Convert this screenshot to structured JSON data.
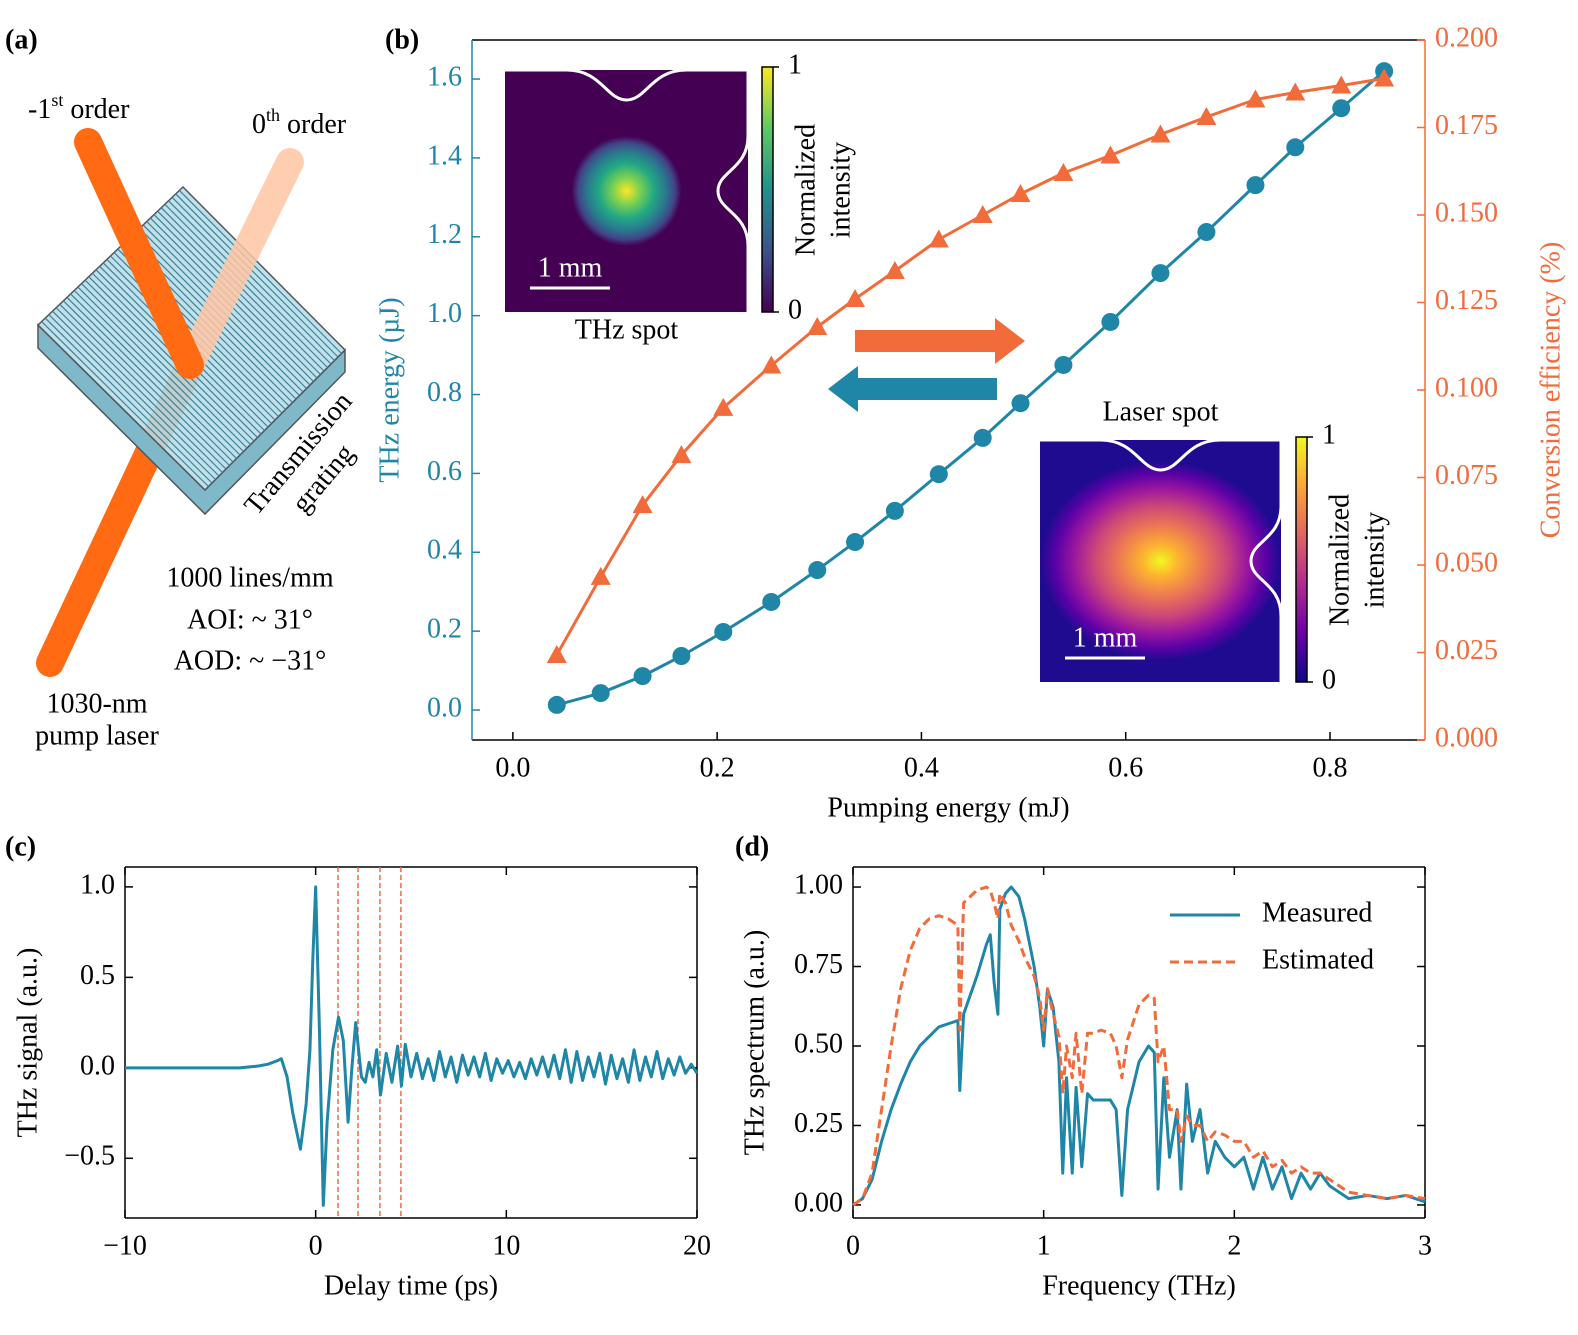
{
  "panel_a": {
    "label": "(a)",
    "minus_first": [
      "-1",
      "st",
      " order"
    ],
    "zeroth": [
      "0",
      "th",
      " order"
    ],
    "grating": [
      "Transmission",
      "grating"
    ],
    "specs": [
      "1000 lines/mm",
      "AOI: ~ 31°",
      "AOD: ~ −31°"
    ],
    "laser": [
      "1030-nm",
      "pump laser"
    ]
  },
  "chart_data": [
    {
      "type": "line",
      "label": "(b)",
      "xlabel": "Pumping energy (mJ)",
      "ylabel": "THz energy (µJ)",
      "y2label": "Conversion efficiency (%)",
      "x": [
        0.043,
        0.086,
        0.127,
        0.165,
        0.206,
        0.253,
        0.298,
        0.335,
        0.374,
        0.417,
        0.46,
        0.497,
        0.539,
        0.585,
        0.634,
        0.679,
        0.727,
        0.766,
        0.811,
        0.853
      ],
      "series": [
        {
          "color": "#1f86a8",
          "marker": "o",
          "values": [
            0.013,
            0.043,
            0.086,
            0.137,
            0.198,
            0.274,
            0.355,
            0.426,
            0.505,
            0.598,
            0.69,
            0.778,
            0.875,
            0.984,
            1.108,
            1.212,
            1.331,
            1.427,
            1.526,
            1.62
          ]
        },
        {
          "color": "#f26b3a",
          "marker": "^",
          "axis": "y2",
          "values": [
            0.0243,
            0.0466,
            0.0671,
            0.0814,
            0.0949,
            0.107,
            0.118,
            0.126,
            0.134,
            0.143,
            0.15,
            0.156,
            0.162,
            0.167,
            0.173,
            0.178,
            0.183,
            0.185,
            0.187,
            0.189
          ]
        }
      ],
      "xlim": [
        -0.04,
        0.893
      ],
      "xticks": [
        {
          "value": 0,
          "label": "0.0"
        },
        0.2,
        0.4,
        0.6,
        0.8
      ],
      "ylim": [
        -0.076,
        1.699
      ],
      "yticks": [
        {
          "value": 0,
          "label": "0.0"
        },
        0.2,
        0.4,
        0.6,
        0.8,
        {
          "value": 1,
          "label": "1.0"
        },
        1.2,
        1.4,
        1.6
      ],
      "y2lim": [
        0,
        0.2
      ],
      "y2ticks": [
        {
          "value": 0,
          "label": "0.000"
        },
        {
          "value": 0.025,
          "label": "0.025"
        },
        {
          "value": 0.05,
          "label": "0.050"
        },
        {
          "value": 0.075,
          "label": "0.075"
        },
        {
          "value": 0.1,
          "label": "0.100"
        },
        {
          "value": 0.125,
          "label": "0.125"
        },
        {
          "value": 0.15,
          "label": "0.150"
        },
        {
          "value": 0.175,
          "label": "0.175"
        },
        {
          "value": 0.2,
          "label": "0.200"
        }
      ],
      "ycolor": "#1f86a8",
      "y2color": "#f26b3a",
      "insets": [
        {
          "title": "THz spot",
          "scale_label": "1 mm",
          "colorbar_label": [
            "Normalized",
            "intensity"
          ],
          "colorbar_ticks": [
            0,
            1
          ],
          "colormap": "viridis"
        },
        {
          "title": "Laser spot",
          "scale_label": "1 mm",
          "colorbar_label": [
            "Normalized",
            "intensity"
          ],
          "colorbar_ticks": [
            0,
            1
          ],
          "colormap": "plasma"
        }
      ]
    },
    {
      "type": "line",
      "label": "(c)",
      "xlabel": "Delay time (ps)",
      "ylabel": "THz signal (a.u.)",
      "x": [
        -10,
        -8,
        -6,
        -4,
        -3,
        -2.5,
        -2,
        -1.8,
        -1.5,
        -1.2,
        -0.8,
        -0.5,
        -0.3,
        -0.15,
        0,
        0.2,
        0.4,
        0.6,
        0.9,
        1.2,
        1.45,
        1.7,
        1.9,
        2.1,
        2.4,
        2.6,
        2.8,
        3.0,
        3.2,
        3.4,
        3.7,
        4.0,
        4.3,
        4.5,
        4.7,
        5.0,
        5.3,
        5.6,
        5.9,
        6.2,
        6.5,
        6.8,
        7.1,
        7.4,
        7.7,
        8.0,
        8.3,
        8.6,
        8.9,
        9.2,
        9.5,
        9.8,
        10.1,
        10.4,
        10.7,
        11.0,
        11.3,
        11.6,
        11.9,
        12.2,
        12.5,
        12.8,
        13.1,
        13.4,
        13.7,
        14.0,
        14.3,
        14.6,
        14.9,
        15.2,
        15.5,
        15.8,
        16.1,
        16.4,
        16.7,
        17.0,
        17.3,
        17.6,
        17.9,
        18.2,
        18.5,
        18.8,
        19.1,
        19.4,
        19.7,
        20.0
      ],
      "series": [
        {
          "color": "#1f86a8",
          "values": [
            0,
            0,
            0,
            0,
            0.01,
            0.02,
            0.04,
            0.05,
            -0.05,
            -0.25,
            -0.45,
            -0.2,
            0.1,
            0.6,
            1.0,
            0.2,
            -0.76,
            -0.3,
            0.1,
            0.28,
            0.15,
            -0.3,
            0.0,
            0.25,
            -0.05,
            -0.08,
            0.03,
            -0.05,
            0.1,
            -0.15,
            0.08,
            -0.08,
            0.12,
            -0.1,
            0.13,
            -0.05,
            0.08,
            -0.06,
            0.05,
            -0.07,
            0.09,
            -0.05,
            0.06,
            -0.08,
            0.07,
            -0.04,
            0.06,
            -0.05,
            0.08,
            -0.07,
            0.05,
            -0.03,
            0.04,
            -0.05,
            0.03,
            -0.06,
            0.05,
            -0.04,
            0.06,
            -0.05,
            0.07,
            -0.06,
            0.1,
            -0.08,
            0.09,
            -0.07,
            0.06,
            -0.05,
            0.08,
            -0.09,
            0.07,
            -0.06,
            0.05,
            -0.08,
            0.1,
            -0.07,
            0.06,
            -0.05,
            0.09,
            -0.06,
            0.05,
            -0.04,
            0.06,
            -0.03,
            0.02,
            -0.03
          ]
        }
      ],
      "xlim": [
        -10,
        20
      ],
      "xticks": [
        {
          "value": -10,
          "label": "−10"
        },
        0,
        10,
        20
      ],
      "ylim": [
        -0.83,
        1.11
      ],
      "yticks": [
        {
          "value": -0.5,
          "label": "−0.5"
        },
        {
          "value": 0,
          "label": "0.0"
        },
        0.5,
        {
          "value": 1,
          "label": "1.0"
        }
      ],
      "vlines": [
        1.17,
        2.22,
        3.37,
        4.47
      ],
      "vline_color": "#f26b3a"
    },
    {
      "type": "line",
      "label": "(d)",
      "xlabel": "Frequency (THz)",
      "ylabel": "THz spectrum (a.u.)",
      "x": [
        0,
        0.05,
        0.1,
        0.15,
        0.2,
        0.25,
        0.3,
        0.35,
        0.4,
        0.45,
        0.5,
        0.55,
        0.56,
        0.58,
        0.65,
        0.7,
        0.72,
        0.74,
        0.76,
        0.77,
        0.8,
        0.83,
        0.87,
        0.9,
        0.95,
        0.98,
        1.0,
        1.02,
        1.05,
        1.08,
        1.1,
        1.12,
        1.15,
        1.17,
        1.2,
        1.23,
        1.26,
        1.3,
        1.35,
        1.38,
        1.41,
        1.44,
        1.5,
        1.55,
        1.58,
        1.6,
        1.63,
        1.66,
        1.7,
        1.72,
        1.75,
        1.78,
        1.82,
        1.86,
        1.9,
        1.95,
        2.0,
        2.05,
        2.1,
        2.15,
        2.2,
        2.25,
        2.3,
        2.35,
        2.4,
        2.45,
        2.5,
        2.55,
        2.6,
        2.7,
        2.8,
        2.9,
        3.0
      ],
      "series": [
        {
          "name": "Measured",
          "color": "#1f86a8",
          "values": [
            0,
            0.02,
            0.08,
            0.2,
            0.3,
            0.38,
            0.45,
            0.5,
            0.53,
            0.56,
            0.57,
            0.58,
            0.36,
            0.6,
            0.72,
            0.82,
            0.85,
            0.7,
            0.6,
            0.93,
            0.98,
            1.0,
            0.97,
            0.9,
            0.75,
            0.62,
            0.5,
            0.68,
            0.62,
            0.45,
            0.1,
            0.4,
            0.1,
            0.37,
            0.12,
            0.35,
            0.33,
            0.33,
            0.33,
            0.3,
            0.03,
            0.3,
            0.45,
            0.5,
            0.48,
            0.05,
            0.4,
            0.15,
            0.3,
            0.05,
            0.38,
            0.2,
            0.3,
            0.1,
            0.2,
            0.15,
            0.12,
            0.15,
            0.05,
            0.15,
            0.05,
            0.12,
            0.02,
            0.1,
            0.05,
            0.1,
            0.06,
            0.04,
            0.02,
            0.03,
            0.02,
            0.03,
            0.01
          ]
        },
        {
          "name": "Estimated",
          "color": "#f26b3a",
          "linestyle": "dashed",
          "values": [
            0,
            0.02,
            0.1,
            0.3,
            0.5,
            0.68,
            0.8,
            0.87,
            0.9,
            0.91,
            0.9,
            0.88,
            0.55,
            0.95,
            0.99,
            1.0,
            0.99,
            0.95,
            0.9,
            0.98,
            0.95,
            0.88,
            0.83,
            0.78,
            0.72,
            0.65,
            0.55,
            0.68,
            0.6,
            0.53,
            0.35,
            0.5,
            0.4,
            0.54,
            0.35,
            0.54,
            0.54,
            0.55,
            0.54,
            0.5,
            0.4,
            0.52,
            0.63,
            0.66,
            0.65,
            0.45,
            0.5,
            0.3,
            0.3,
            0.2,
            0.28,
            0.25,
            0.25,
            0.2,
            0.23,
            0.22,
            0.2,
            0.2,
            0.15,
            0.17,
            0.12,
            0.14,
            0.1,
            0.12,
            0.1,
            0.1,
            0.08,
            0.06,
            0.04,
            0.03,
            0.02,
            0.03,
            0.02
          ]
        }
      ],
      "xlim": [
        0,
        3
      ],
      "xticks": [
        0,
        1,
        2,
        3
      ],
      "ylim": [
        -0.041,
        1.063
      ],
      "yticks": [
        {
          "value": 0,
          "label": "0.00"
        },
        {
          "value": 0.25,
          "label": "0.25"
        },
        {
          "value": 0.5,
          "label": "0.50"
        },
        {
          "value": 0.75,
          "label": "0.75"
        },
        {
          "value": 1,
          "label": "1.00"
        }
      ],
      "legend": "upper right"
    }
  ]
}
